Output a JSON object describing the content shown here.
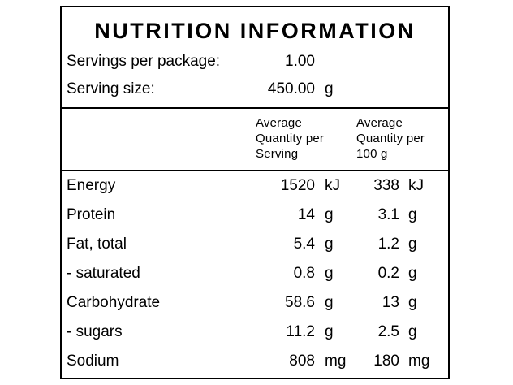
{
  "label": {
    "title": "NUTRITION INFORMATION",
    "info_rows": [
      {
        "name": "Servings per package:",
        "value": "1.00",
        "unit": ""
      },
      {
        "name": "Serving size:",
        "value": "450.00",
        "unit": "g"
      }
    ],
    "column_headers": {
      "per_serving": "Average\nQuantity per\nServing",
      "per_100g": "Average\nQuantity per\n100 g"
    },
    "rows": [
      {
        "name": "Energy",
        "qty_serving": "1520",
        "unit_serving": "kJ",
        "qty_100g": "338",
        "unit_100g": "kJ"
      },
      {
        "name": "Protein",
        "qty_serving": "14",
        "unit_serving": "g",
        "qty_100g": "3.1",
        "unit_100g": "g"
      },
      {
        "name": "Fat, total",
        "qty_serving": "5.4",
        "unit_serving": "g",
        "qty_100g": "1.2",
        "unit_100g": "g"
      },
      {
        "name": "- saturated",
        "qty_serving": "0.8",
        "unit_serving": "g",
        "qty_100g": "0.2",
        "unit_100g": "g"
      },
      {
        "name": "Carbohydrate",
        "qty_serving": "58.6",
        "unit_serving": "g",
        "qty_100g": "13",
        "unit_100g": "g"
      },
      {
        "name": "- sugars",
        "qty_serving": "11.2",
        "unit_serving": "g",
        "qty_100g": "2.5",
        "unit_100g": "g"
      },
      {
        "name": "Sodium",
        "qty_serving": "808",
        "unit_serving": "mg",
        "qty_100g": "180",
        "unit_100g": "mg"
      }
    ],
    "colors": {
      "border": "#000000",
      "text": "#000000",
      "background": "#ffffff"
    }
  }
}
